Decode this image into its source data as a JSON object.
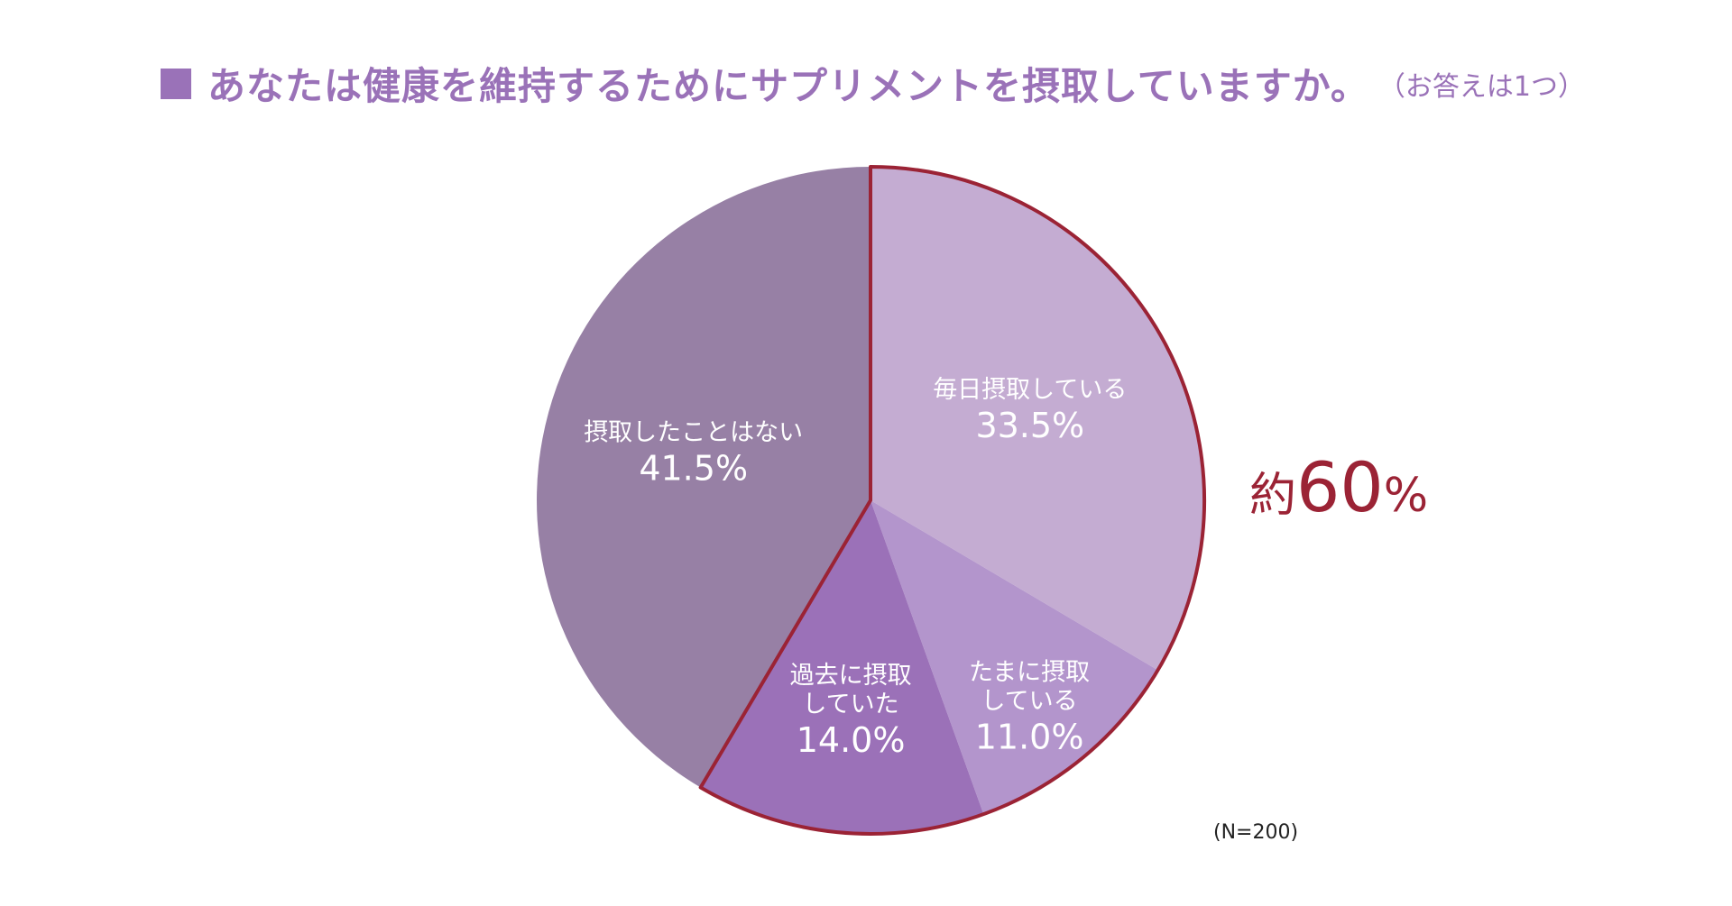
{
  "chart_data": {
    "type": "pie",
    "title": "あなたは健康を維持するためにサプリメントを摂取していますか。",
    "title_note": "（お答えは1つ）",
    "slices": [
      {
        "label_lines": [
          "毎日摂取している"
        ],
        "value": 33.5,
        "value_label": "33.5%",
        "color": "#c4acd2"
      },
      {
        "label_lines": [
          "たまに摂取",
          "している"
        ],
        "value": 11.0,
        "value_label": "11.0%",
        "color": "#b395cc"
      },
      {
        "label_lines": [
          "過去に摂取",
          "していた"
        ],
        "value": 14.0,
        "value_label": "14.0%",
        "color": "#9b71b8"
      },
      {
        "label_lines": [
          "摂取したことはない"
        ],
        "value": 41.5,
        "value_label": "41.5%",
        "color": "#9780a5"
      }
    ],
    "highlight": {
      "text_prefix": "約",
      "text_value": "60",
      "text_unit": "%",
      "color": "#9b2335"
    },
    "sample_note": "(N=200)"
  }
}
